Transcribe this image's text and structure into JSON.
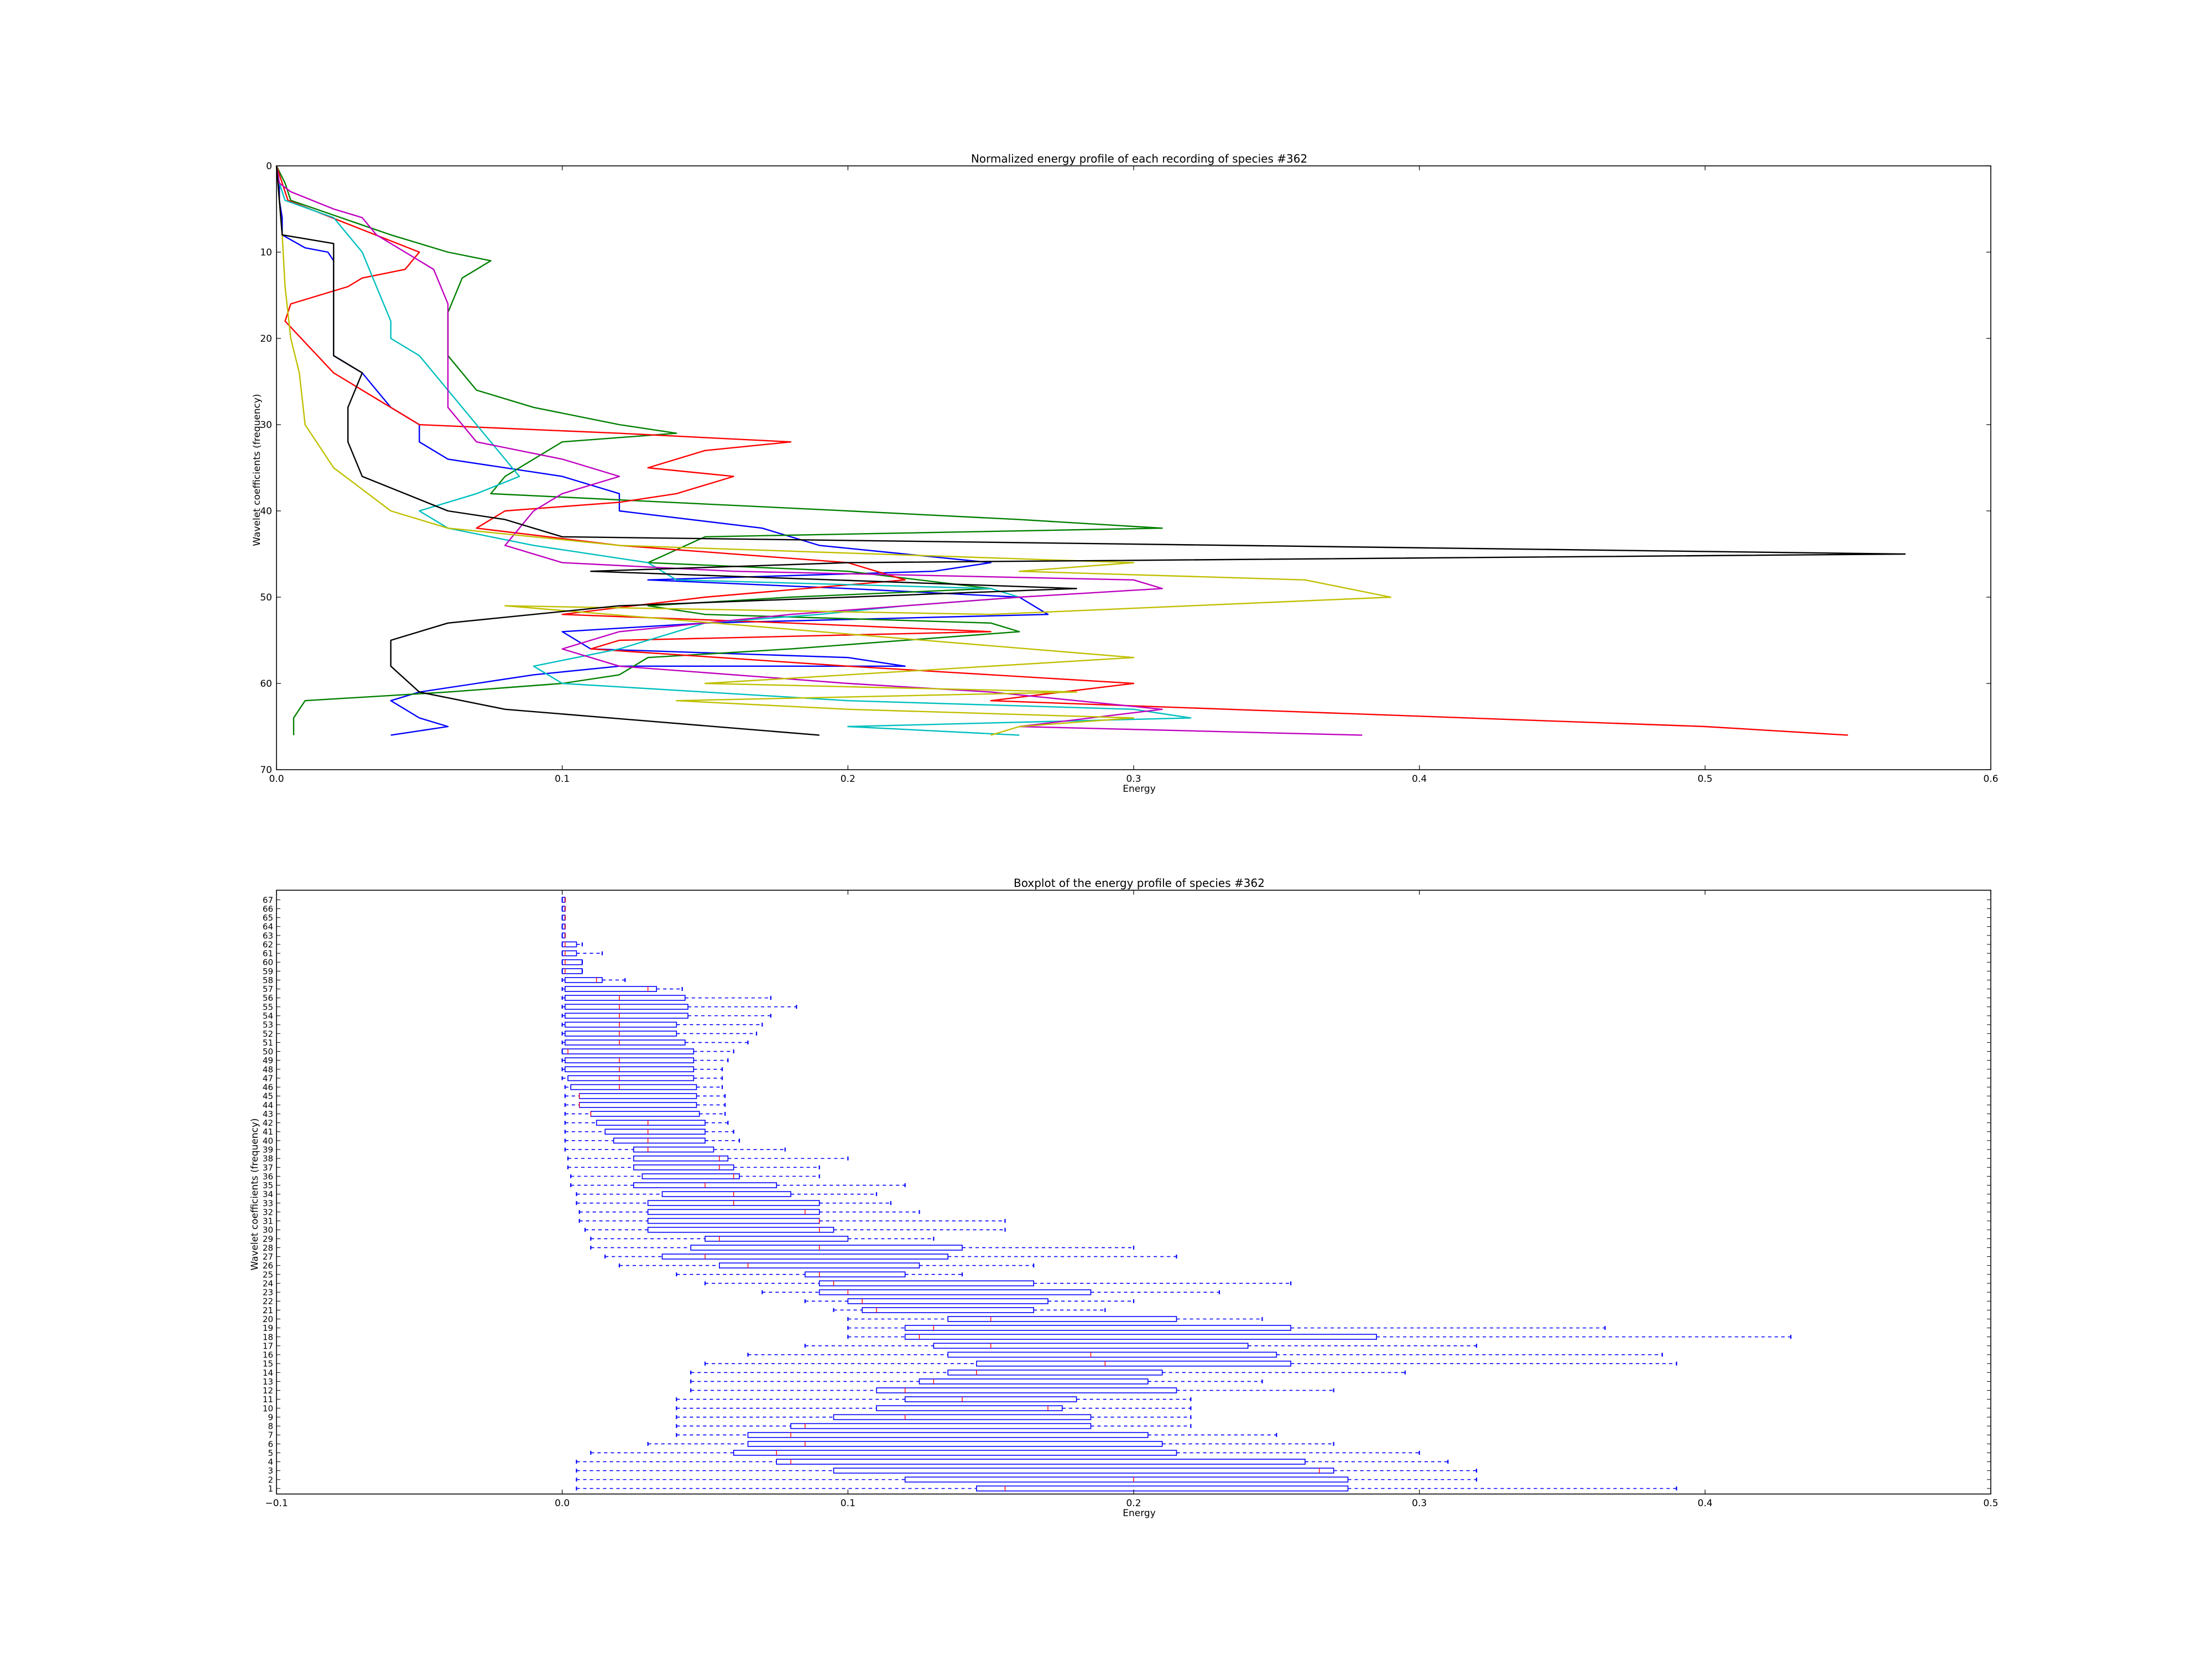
{
  "chart_data": [
    {
      "type": "line",
      "title": "Normalized energy profile of each recording of species #362",
      "xlabel": "Energy",
      "ylabel": "Wavelet coefficients (frequency)",
      "xlim": [
        0,
        0.6
      ],
      "ylim": [
        70,
        0
      ],
      "x_ticks": [
        "0.0",
        "0.1",
        "0.2",
        "0.3",
        "0.4",
        "0.5",
        "0.6"
      ],
      "y_ticks": [
        "0",
        "10",
        "20",
        "30",
        "40",
        "50",
        "60",
        "70"
      ],
      "grid": false,
      "note_series": "Each line is one recording; x is energy, y is coefficient index (0 at top).",
      "series": [
        {
          "color": "#0000ff",
          "x": [
            0.0,
            0.001,
            0.001,
            0.002,
            0.002,
            0.01,
            0.018,
            0.02,
            0.02,
            0.02,
            0.02,
            0.03,
            0.035,
            0.04,
            0.05,
            0.05,
            0.06,
            0.1,
            0.12,
            0.12,
            0.17,
            0.19,
            0.22,
            0.25,
            0.23,
            0.13,
            0.2,
            0.26,
            0.27,
            0.15,
            0.1,
            0.11,
            0.2,
            0.22,
            0.12,
            0.09,
            0.07,
            0.05,
            0.04,
            0.05,
            0.06,
            0.04
          ],
          "y": [
            0,
            2,
            4,
            6,
            8,
            9.5,
            10,
            11,
            14,
            18,
            22,
            24,
            26,
            28,
            30,
            32,
            34,
            36,
            38,
            40,
            42,
            44,
            45,
            46,
            47,
            48,
            49,
            50,
            52,
            53,
            54,
            56,
            57,
            58,
            58,
            59,
            60,
            61,
            62,
            64,
            65,
            66
          ]
        },
        {
          "color": "#008000",
          "x": [
            0.0,
            0.003,
            0.005,
            0.04,
            0.06,
            0.075,
            0.07,
            0.065,
            0.06,
            0.06,
            0.07,
            0.09,
            0.12,
            0.14,
            0.1,
            0.08,
            0.075,
            0.2,
            0.26,
            0.31,
            0.15,
            0.13,
            0.2,
            0.25,
            0.18,
            0.13,
            0.15,
            0.25,
            0.26,
            0.18,
            0.13,
            0.12,
            0.1,
            0.06,
            0.01,
            0.006,
            0.006
          ],
          "y": [
            0,
            2,
            4,
            8,
            10,
            11,
            12,
            13,
            17,
            22,
            26,
            28,
            30,
            31,
            32,
            36,
            38,
            40,
            41,
            42,
            43,
            46,
            47,
            49,
            50,
            51,
            52,
            53,
            54,
            56,
            57,
            59,
            60,
            61,
            62,
            64,
            66
          ]
        },
        {
          "color": "#ff0000",
          "x": [
            0.0,
            0.002,
            0.004,
            0.05,
            0.045,
            0.03,
            0.025,
            0.005,
            0.003,
            0.02,
            0.05,
            0.12,
            0.18,
            0.15,
            0.13,
            0.16,
            0.14,
            0.12,
            0.08,
            0.07,
            0.12,
            0.2,
            0.22,
            0.15,
            0.1,
            0.18,
            0.25,
            0.12,
            0.11,
            0.2,
            0.3,
            0.25,
            0.5,
            0.55
          ],
          "y": [
            0,
            2,
            4,
            10,
            12,
            13,
            14,
            16,
            18,
            24,
            30,
            31,
            32,
            33,
            35,
            36,
            38,
            39,
            40,
            42,
            44,
            46,
            48,
            50,
            52,
            53,
            54,
            55,
            56,
            58,
            60,
            62,
            65,
            66
          ]
        },
        {
          "color": "#00bfbf",
          "x": [
            0.0,
            0.001,
            0.003,
            0.02,
            0.03,
            0.035,
            0.04,
            0.04,
            0.05,
            0.06,
            0.07,
            0.08,
            0.085,
            0.07,
            0.05,
            0.06,
            0.09,
            0.13,
            0.14,
            0.25,
            0.26,
            0.22,
            0.19,
            0.15,
            0.12,
            0.09,
            0.1,
            0.2,
            0.3,
            0.32,
            0.2,
            0.26
          ],
          "y": [
            0,
            2,
            4,
            6,
            10,
            14,
            18,
            20,
            22,
            26,
            30,
            34,
            36,
            38,
            40,
            42,
            44,
            46,
            48,
            49,
            50,
            51,
            52,
            53,
            56,
            58,
            60,
            62,
            63,
            64,
            65,
            66
          ]
        },
        {
          "color": "#bf00bf",
          "x": [
            0.0,
            0.001,
            0.005,
            0.02,
            0.03,
            0.035,
            0.045,
            0.055,
            0.06,
            0.06,
            0.06,
            0.06,
            0.07,
            0.1,
            0.12,
            0.1,
            0.09,
            0.085,
            0.08,
            0.1,
            0.16,
            0.3,
            0.31,
            0.26,
            0.18,
            0.12,
            0.1,
            0.12,
            0.2,
            0.25,
            0.31,
            0.26,
            0.38
          ],
          "y": [
            0,
            2,
            3,
            5,
            6,
            8,
            10,
            12,
            16,
            20,
            24,
            28,
            32,
            34,
            36,
            38,
            40,
            42,
            44,
            46,
            47,
            48,
            49,
            50,
            52,
            54,
            56,
            58,
            60,
            61,
            63,
            65,
            66
          ]
        },
        {
          "color": "#bfbf00",
          "x": [
            0.0,
            0.001,
            0.002,
            0.003,
            0.005,
            0.008,
            0.01,
            0.02,
            0.04,
            0.06,
            0.12,
            0.3,
            0.26,
            0.36,
            0.39,
            0.25,
            0.08,
            0.3,
            0.15,
            0.28,
            0.14,
            0.2,
            0.3,
            0.26,
            0.25
          ],
          "y": [
            0,
            4,
            8,
            14,
            20,
            24,
            30,
            35,
            40,
            42,
            44,
            46,
            47,
            48,
            50,
            52,
            51,
            57,
            60,
            61,
            62,
            63,
            64,
            65,
            66
          ]
        },
        {
          "color": "#000000",
          "x": [
            0.0,
            0.001,
            0.002,
            0.02,
            0.02,
            0.02,
            0.02,
            0.03,
            0.025,
            0.025,
            0.03,
            0.06,
            0.08,
            0.1,
            0.57,
            0.2,
            0.11,
            0.28,
            0.2,
            0.12,
            0.06,
            0.04,
            0.04,
            0.05,
            0.08,
            0.19
          ],
          "y": [
            0,
            4,
            8,
            9,
            12,
            16,
            22,
            24,
            28,
            32,
            36,
            40,
            41,
            43,
            45,
            46,
            47,
            49,
            50,
            51,
            53,
            55,
            58,
            61,
            63,
            66
          ]
        }
      ]
    },
    {
      "type": "boxplot",
      "title": "Boxplot of the energy profile of species #362",
      "xlabel": "Energy",
      "ylabel": "Wavelet coefficients (frequency)",
      "xlim": [
        -0.1,
        0.5
      ],
      "x_ticks": [
        "−0.1",
        "0.0",
        "0.1",
        "0.2",
        "0.3",
        "0.4",
        "0.5"
      ],
      "grid": false,
      "color": "#0000ff",
      "categories": [
        "1",
        "2",
        "3",
        "4",
        "5",
        "6",
        "7",
        "8",
        "9",
        "10",
        "11",
        "12",
        "13",
        "14",
        "15",
        "16",
        "17",
        "18",
        "19",
        "20",
        "21",
        "22",
        "23",
        "24",
        "25",
        "26",
        "27",
        "28",
        "29",
        "30",
        "31",
        "32",
        "33",
        "34",
        "35",
        "36",
        "37",
        "38",
        "39",
        "40",
        "41",
        "42",
        "43",
        "44",
        "45",
        "46",
        "47",
        "48",
        "49",
        "50",
        "51",
        "52",
        "53",
        "54",
        "55",
        "56",
        "57",
        "58",
        "59",
        "60",
        "61",
        "62",
        "63",
        "64",
        "65",
        "66",
        "67"
      ],
      "boxes": [
        {
          "lo": 0.005,
          "q1": 0.145,
          "med": 0.155,
          "q3": 0.275,
          "hi": 0.39
        },
        {
          "lo": 0.005,
          "q1": 0.12,
          "med": 0.2,
          "q3": 0.275,
          "hi": 0.32
        },
        {
          "lo": 0.005,
          "q1": 0.095,
          "med": 0.265,
          "q3": 0.27,
          "hi": 0.32
        },
        {
          "lo": 0.005,
          "q1": 0.075,
          "med": 0.08,
          "q3": 0.26,
          "hi": 0.31
        },
        {
          "lo": 0.01,
          "q1": 0.06,
          "med": 0.075,
          "q3": 0.215,
          "hi": 0.3
        },
        {
          "lo": 0.03,
          "q1": 0.065,
          "med": 0.085,
          "q3": 0.21,
          "hi": 0.27
        },
        {
          "lo": 0.04,
          "q1": 0.065,
          "med": 0.08,
          "q3": 0.205,
          "hi": 0.25
        },
        {
          "lo": 0.04,
          "q1": 0.08,
          "med": 0.085,
          "q3": 0.185,
          "hi": 0.22
        },
        {
          "lo": 0.04,
          "q1": 0.095,
          "med": 0.12,
          "q3": 0.185,
          "hi": 0.22
        },
        {
          "lo": 0.04,
          "q1": 0.11,
          "med": 0.17,
          "q3": 0.175,
          "hi": 0.22
        },
        {
          "lo": 0.04,
          "q1": 0.12,
          "med": 0.14,
          "q3": 0.18,
          "hi": 0.22
        },
        {
          "lo": 0.045,
          "q1": 0.11,
          "med": 0.12,
          "q3": 0.215,
          "hi": 0.27
        },
        {
          "lo": 0.045,
          "q1": 0.125,
          "med": 0.13,
          "q3": 0.205,
          "hi": 0.245
        },
        {
          "lo": 0.045,
          "q1": 0.135,
          "med": 0.145,
          "q3": 0.21,
          "hi": 0.295
        },
        {
          "lo": 0.05,
          "q1": 0.145,
          "med": 0.19,
          "q3": 0.255,
          "hi": 0.39
        },
        {
          "lo": 0.065,
          "q1": 0.135,
          "med": 0.185,
          "q3": 0.25,
          "hi": 0.385
        },
        {
          "lo": 0.085,
          "q1": 0.13,
          "med": 0.15,
          "q3": 0.24,
          "hi": 0.32
        },
        {
          "lo": 0.1,
          "q1": 0.12,
          "med": 0.125,
          "q3": 0.285,
          "hi": 0.43
        },
        {
          "lo": 0.1,
          "q1": 0.12,
          "med": 0.13,
          "q3": 0.255,
          "hi": 0.365
        },
        {
          "lo": 0.1,
          "q1": 0.135,
          "med": 0.15,
          "q3": 0.215,
          "hi": 0.245
        },
        {
          "lo": 0.095,
          "q1": 0.105,
          "med": 0.11,
          "q3": 0.165,
          "hi": 0.19
        },
        {
          "lo": 0.085,
          "q1": 0.1,
          "med": 0.105,
          "q3": 0.17,
          "hi": 0.2
        },
        {
          "lo": 0.07,
          "q1": 0.09,
          "med": 0.1,
          "q3": 0.185,
          "hi": 0.23
        },
        {
          "lo": 0.05,
          "q1": 0.09,
          "med": 0.095,
          "q3": 0.165,
          "hi": 0.255
        },
        {
          "lo": 0.04,
          "q1": 0.085,
          "med": 0.09,
          "q3": 0.12,
          "hi": 0.14
        },
        {
          "lo": 0.02,
          "q1": 0.055,
          "med": 0.065,
          "q3": 0.125,
          "hi": 0.165
        },
        {
          "lo": 0.015,
          "q1": 0.035,
          "med": 0.05,
          "q3": 0.135,
          "hi": 0.215
        },
        {
          "lo": 0.01,
          "q1": 0.045,
          "med": 0.09,
          "q3": 0.14,
          "hi": 0.2
        },
        {
          "lo": 0.01,
          "q1": 0.05,
          "med": 0.055,
          "q3": 0.1,
          "hi": 0.13
        },
        {
          "lo": 0.008,
          "q1": 0.03,
          "med": 0.09,
          "q3": 0.095,
          "hi": 0.155
        },
        {
          "lo": 0.006,
          "q1": 0.03,
          "med": 0.09,
          "q3": 0.09,
          "hi": 0.155
        },
        {
          "lo": 0.006,
          "q1": 0.03,
          "med": 0.085,
          "q3": 0.09,
          "hi": 0.125
        },
        {
          "lo": 0.005,
          "q1": 0.03,
          "med": 0.06,
          "q3": 0.09,
          "hi": 0.115
        },
        {
          "lo": 0.005,
          "q1": 0.035,
          "med": 0.06,
          "q3": 0.08,
          "hi": 0.11
        },
        {
          "lo": 0.003,
          "q1": 0.025,
          "med": 0.05,
          "q3": 0.075,
          "hi": 0.12
        },
        {
          "lo": 0.003,
          "q1": 0.028,
          "med": 0.06,
          "q3": 0.062,
          "hi": 0.09
        },
        {
          "lo": 0.002,
          "q1": 0.025,
          "med": 0.055,
          "q3": 0.06,
          "hi": 0.09
        },
        {
          "lo": 0.002,
          "q1": 0.025,
          "med": 0.055,
          "q3": 0.058,
          "hi": 0.1
        },
        {
          "lo": 0.001,
          "q1": 0.025,
          "med": 0.03,
          "q3": 0.053,
          "hi": 0.078
        },
        {
          "lo": 0.001,
          "q1": 0.018,
          "med": 0.03,
          "q3": 0.05,
          "hi": 0.062
        },
        {
          "lo": 0.001,
          "q1": 0.015,
          "med": 0.03,
          "q3": 0.05,
          "hi": 0.06
        },
        {
          "lo": 0.001,
          "q1": 0.012,
          "med": 0.03,
          "q3": 0.05,
          "hi": 0.058
        },
        {
          "lo": 0.001,
          "q1": 0.01,
          "med": 0.01,
          "q3": 0.048,
          "hi": 0.057
        },
        {
          "lo": 0.001,
          "q1": 0.006,
          "med": 0.006,
          "q3": 0.047,
          "hi": 0.057
        },
        {
          "lo": 0.001,
          "q1": 0.006,
          "med": 0.006,
          "q3": 0.047,
          "hi": 0.057
        },
        {
          "lo": 0.001,
          "q1": 0.003,
          "med": 0.02,
          "q3": 0.047,
          "hi": 0.056
        },
        {
          "lo": 0.0,
          "q1": 0.002,
          "med": 0.02,
          "q3": 0.046,
          "hi": 0.056
        },
        {
          "lo": 0.0,
          "q1": 0.001,
          "med": 0.02,
          "q3": 0.046,
          "hi": 0.056
        },
        {
          "lo": 0.0,
          "q1": 0.001,
          "med": 0.02,
          "q3": 0.046,
          "hi": 0.058
        },
        {
          "lo": 0.0,
          "q1": 0.0,
          "med": 0.002,
          "q3": 0.046,
          "hi": 0.06
        },
        {
          "lo": 0.0,
          "q1": 0.001,
          "med": 0.02,
          "q3": 0.043,
          "hi": 0.065
        },
        {
          "lo": 0.0,
          "q1": 0.001,
          "med": 0.02,
          "q3": 0.04,
          "hi": 0.068
        },
        {
          "lo": 0.0,
          "q1": 0.001,
          "med": 0.02,
          "q3": 0.04,
          "hi": 0.07
        },
        {
          "lo": 0.0,
          "q1": 0.001,
          "med": 0.02,
          "q3": 0.044,
          "hi": 0.073
        },
        {
          "lo": 0.0,
          "q1": 0.001,
          "med": 0.02,
          "q3": 0.044,
          "hi": 0.082
        },
        {
          "lo": 0.0,
          "q1": 0.001,
          "med": 0.02,
          "q3": 0.043,
          "hi": 0.073
        },
        {
          "lo": 0.0,
          "q1": 0.001,
          "med": 0.03,
          "q3": 0.033,
          "hi": 0.042
        },
        {
          "lo": 0.0,
          "q1": 0.001,
          "med": 0.012,
          "q3": 0.014,
          "hi": 0.022
        },
        {
          "lo": 0.0,
          "q1": 0.0,
          "med": 0.001,
          "q3": 0.007,
          "hi": 0.007
        },
        {
          "lo": 0.0,
          "q1": 0.0,
          "med": 0.001,
          "q3": 0.007,
          "hi": 0.007
        },
        {
          "lo": 0.0,
          "q1": 0.0,
          "med": 0.001,
          "q3": 0.005,
          "hi": 0.014
        },
        {
          "lo": 0.0,
          "q1": 0.0,
          "med": 0.001,
          "q3": 0.005,
          "hi": 0.007
        },
        {
          "lo": 0.0,
          "q1": 0.0,
          "med": 0.001,
          "q3": 0.001,
          "hi": 0.001
        },
        {
          "lo": 0.0,
          "q1": 0.0,
          "med": 0.001,
          "q3": 0.001,
          "hi": 0.001
        },
        {
          "lo": 0.0,
          "q1": 0.0,
          "med": 0.001,
          "q3": 0.001,
          "hi": 0.001
        },
        {
          "lo": 0.0,
          "q1": 0.0,
          "med": 0.001,
          "q3": 0.001,
          "hi": 0.001
        },
        {
          "lo": 0.0,
          "q1": 0.0,
          "med": 0.001,
          "q3": 0.001,
          "hi": 0.001
        }
      ]
    }
  ]
}
